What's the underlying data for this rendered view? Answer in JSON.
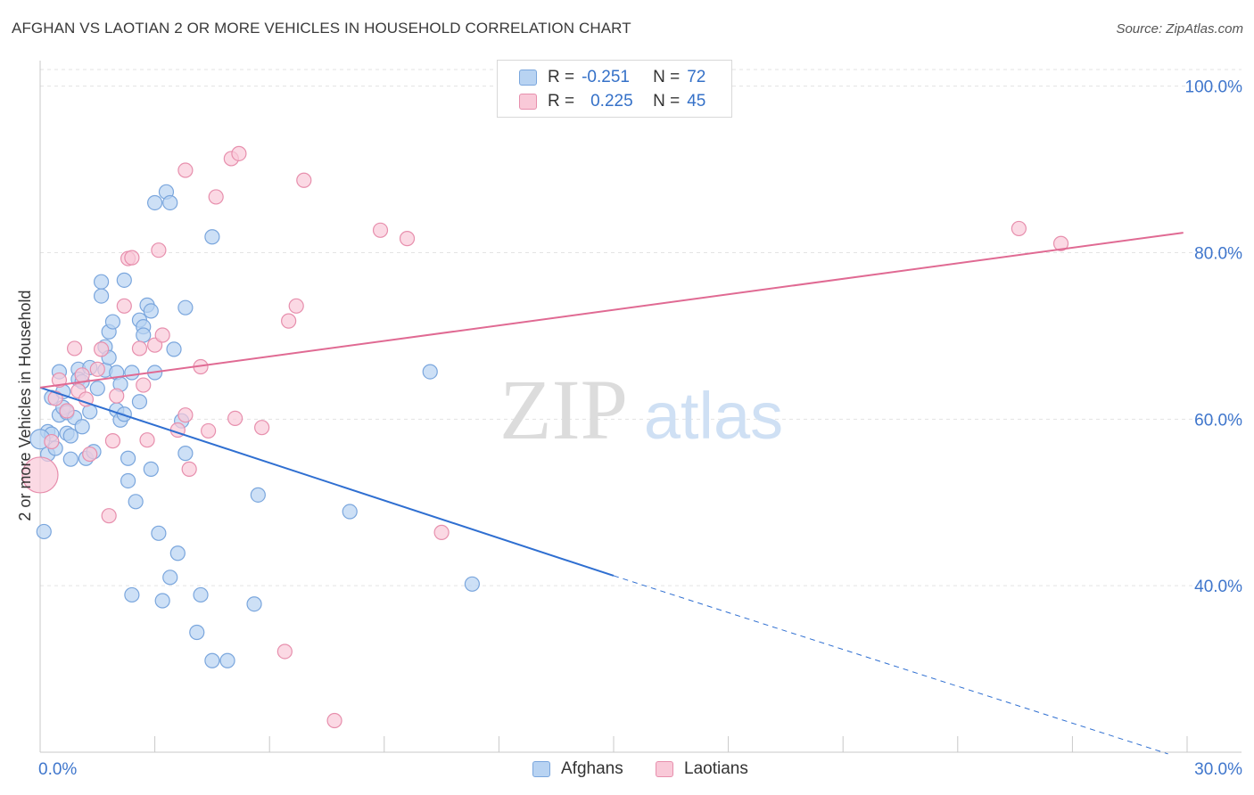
{
  "title": "AFGHAN VS LAOTIAN 2 OR MORE VEHICLES IN HOUSEHOLD CORRELATION CHART",
  "source": "Source: ZipAtlas.com",
  "watermark": {
    "zip": "ZIP",
    "atlas": "atlas"
  },
  "legend": {
    "r_label": "R =",
    "n_label": "N =",
    "afghans": {
      "r": "-0.251",
      "n": "72"
    },
    "laotians": {
      "r": "0.225",
      "n": "45"
    }
  },
  "bottom_legend": {
    "afghans": "Afghans",
    "laotians": "Laotians"
  },
  "colors": {
    "afghans_fill": "#b8d3f2",
    "afghans_stroke": "#7aa6dd",
    "afghans_line": "#2f6fd1",
    "laotians_fill": "#f9c9d8",
    "laotians_stroke": "#e78fad",
    "laotians_line": "#e06a93",
    "tick_label": "#3f76cc"
  },
  "chart_data": {
    "type": "scatter",
    "title": "AFGHAN VS LAOTIAN 2 OR MORE VEHICLES IN HOUSEHOLD CORRELATION CHART",
    "xlabel": "",
    "ylabel": "2 or more Vehicles in Household",
    "xlim": [
      0,
      30
    ],
    "ylim": [
      20,
      102
    ],
    "x_tick_labels": [
      "0.0%",
      "30.0%"
    ],
    "y_ticks": [
      40,
      60,
      80,
      100
    ],
    "y_tick_labels": [
      "40.0%",
      "60.0%",
      "80.0%",
      "100.0%"
    ],
    "series": [
      {
        "name": "Afghans",
        "r": -0.251,
        "n": 72,
        "trend": {
          "x0": 0,
          "y0": 63.8,
          "x1": 15,
          "y1": 41.2,
          "dashed_to_x": 29.5,
          "dashed_to_y": 19.8
        },
        "points": [
          [
            0.1,
            46.5
          ],
          [
            0.2,
            55.8
          ],
          [
            0.2,
            58.5
          ],
          [
            0.3,
            62.6
          ],
          [
            0.3,
            58.2
          ],
          [
            0.4,
            56.5
          ],
          [
            0.5,
            65.7
          ],
          [
            0.5,
            60.5
          ],
          [
            0.6,
            63.3
          ],
          [
            0.6,
            61.4
          ],
          [
            0.7,
            60.8
          ],
          [
            0.7,
            58.3
          ],
          [
            0.8,
            55.2
          ],
          [
            0.8,
            58.0
          ],
          [
            0.9,
            60.2
          ],
          [
            1.0,
            66.0
          ],
          [
            1.0,
            64.8
          ],
          [
            1.1,
            64.5
          ],
          [
            1.1,
            59.1
          ],
          [
            1.2,
            55.3
          ],
          [
            1.3,
            60.9
          ],
          [
            1.3,
            66.2
          ],
          [
            1.4,
            56.1
          ],
          [
            1.5,
            63.7
          ],
          [
            1.6,
            76.5
          ],
          [
            1.6,
            74.8
          ],
          [
            1.7,
            68.7
          ],
          [
            1.7,
            65.9
          ],
          [
            1.8,
            70.5
          ],
          [
            1.8,
            67.4
          ],
          [
            1.9,
            71.7
          ],
          [
            2.0,
            61.1
          ],
          [
            2.0,
            65.6
          ],
          [
            2.1,
            59.9
          ],
          [
            2.1,
            64.2
          ],
          [
            2.2,
            60.6
          ],
          [
            2.2,
            76.7
          ],
          [
            2.3,
            55.3
          ],
          [
            2.3,
            52.6
          ],
          [
            2.4,
            38.9
          ],
          [
            2.4,
            65.6
          ],
          [
            2.5,
            50.1
          ],
          [
            2.6,
            71.9
          ],
          [
            2.6,
            62.1
          ],
          [
            2.7,
            71.1
          ],
          [
            2.7,
            70.1
          ],
          [
            2.8,
            73.7
          ],
          [
            2.9,
            73.0
          ],
          [
            2.9,
            54.0
          ],
          [
            3.0,
            65.6
          ],
          [
            3.0,
            86.0
          ],
          [
            3.1,
            46.3
          ],
          [
            3.2,
            38.2
          ],
          [
            3.3,
            87.3
          ],
          [
            3.4,
            86.0
          ],
          [
            3.4,
            41.0
          ],
          [
            3.5,
            68.4
          ],
          [
            3.6,
            43.9
          ],
          [
            3.7,
            59.8
          ],
          [
            3.8,
            73.4
          ],
          [
            3.8,
            55.9
          ],
          [
            4.1,
            34.4
          ],
          [
            4.2,
            38.9
          ],
          [
            4.5,
            31.0
          ],
          [
            4.5,
            81.9
          ],
          [
            4.9,
            31.0
          ],
          [
            5.6,
            37.8
          ],
          [
            5.7,
            50.9
          ],
          [
            8.1,
            48.9
          ],
          [
            10.2,
            65.7
          ],
          [
            11.3,
            40.2
          ],
          [
            0.0,
            57.6
          ]
        ]
      },
      {
        "name": "Laotians",
        "r": 0.225,
        "n": 45,
        "trend": {
          "x0": 0,
          "y0": 63.8,
          "x1": 29.9,
          "y1": 82.4
        },
        "points": [
          [
            0.0,
            53.3
          ],
          [
            0.3,
            57.3
          ],
          [
            0.4,
            62.5
          ],
          [
            0.5,
            64.7
          ],
          [
            0.7,
            61.0
          ],
          [
            0.9,
            68.5
          ],
          [
            1.0,
            63.4
          ],
          [
            1.1,
            65.3
          ],
          [
            1.2,
            62.4
          ],
          [
            1.3,
            55.8
          ],
          [
            1.5,
            66.0
          ],
          [
            1.6,
            68.4
          ],
          [
            1.8,
            48.4
          ],
          [
            1.9,
            57.4
          ],
          [
            2.2,
            73.6
          ],
          [
            2.3,
            79.3
          ],
          [
            2.4,
            79.4
          ],
          [
            2.6,
            68.5
          ],
          [
            2.7,
            64.1
          ],
          [
            2.8,
            57.5
          ],
          [
            3.0,
            68.9
          ],
          [
            3.1,
            80.3
          ],
          [
            3.2,
            70.1
          ],
          [
            3.6,
            58.7
          ],
          [
            3.8,
            60.5
          ],
          [
            3.8,
            89.9
          ],
          [
            3.9,
            54.0
          ],
          [
            4.2,
            66.3
          ],
          [
            4.4,
            58.6
          ],
          [
            4.6,
            86.7
          ],
          [
            5.0,
            91.3
          ],
          [
            5.1,
            60.1
          ],
          [
            5.2,
            91.9
          ],
          [
            5.8,
            59.0
          ],
          [
            6.4,
            32.1
          ],
          [
            6.5,
            71.8
          ],
          [
            6.7,
            73.6
          ],
          [
            6.9,
            88.7
          ],
          [
            7.7,
            23.8
          ],
          [
            8.9,
            82.7
          ],
          [
            9.6,
            81.7
          ],
          [
            10.5,
            46.4
          ],
          [
            25.6,
            82.9
          ],
          [
            26.7,
            81.1
          ],
          [
            2.0,
            62.8
          ]
        ]
      }
    ]
  }
}
